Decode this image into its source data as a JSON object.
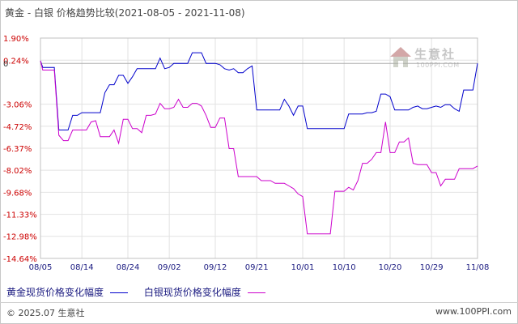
{
  "header": {
    "title": "黄金 - 白银 价格趋势比较(2021-08-05 - 2021-11-08)"
  },
  "chart_data": {
    "type": "line",
    "y_ticks": [
      "1.90%",
      "0.24%",
      "0",
      "-3.06%",
      "-4.72%",
      "-6.37%",
      "-8.02%",
      "-9.68%",
      "-11.33%",
      "-12.98%",
      "-14.64%"
    ],
    "y_tick_values": [
      1.9,
      0.24,
      0,
      -3.06,
      -4.72,
      -6.37,
      -8.02,
      -9.68,
      -11.33,
      -12.98,
      -14.64
    ],
    "ylim": [
      -14.64,
      1.9
    ],
    "x_ticks": [
      "08/05",
      "08/14",
      "08/24",
      "09/02",
      "09/12",
      "09/21",
      "10/01",
      "10/10",
      "10/20",
      "10/29",
      "11/08"
    ],
    "x_tick_days": [
      0,
      9,
      19,
      28,
      38,
      47,
      57,
      66,
      76,
      85,
      95
    ],
    "series": [
      {
        "name": "黄金现货价格变化幅度",
        "color": "#0000cc",
        "points": [
          [
            0,
            0.2
          ],
          [
            0.5,
            -0.3
          ],
          [
            1,
            -0.3
          ],
          [
            2,
            -0.3
          ],
          [
            3,
            -0.3
          ],
          [
            4,
            -5.0
          ],
          [
            5,
            -5.0
          ],
          [
            6,
            -5.0
          ],
          [
            7,
            -3.9
          ],
          [
            8,
            -3.9
          ],
          [
            9,
            -3.7
          ],
          [
            10,
            -3.7
          ],
          [
            11,
            -3.7
          ],
          [
            12,
            -3.7
          ],
          [
            13,
            -3.7
          ],
          [
            14,
            -2.2
          ],
          [
            15,
            -1.6
          ],
          [
            16,
            -1.6
          ],
          [
            17,
            -0.9
          ],
          [
            18,
            -0.9
          ],
          [
            19,
            -1.5
          ],
          [
            20,
            -1.0
          ],
          [
            21,
            -0.4
          ],
          [
            22,
            -0.4
          ],
          [
            23,
            -0.4
          ],
          [
            24,
            -0.4
          ],
          [
            25,
            -0.4
          ],
          [
            26,
            0.4
          ],
          [
            27,
            -0.4
          ],
          [
            28,
            -0.3
          ],
          [
            29,
            0.0
          ],
          [
            30,
            0.0
          ],
          [
            31,
            0.0
          ],
          [
            32,
            0.0
          ],
          [
            33,
            0.8
          ],
          [
            34,
            0.8
          ],
          [
            35,
            0.8
          ],
          [
            36,
            0.0
          ],
          [
            37,
            0.0
          ],
          [
            38,
            0.0
          ],
          [
            39,
            -0.1
          ],
          [
            40,
            -0.4
          ],
          [
            41,
            -0.5
          ],
          [
            42,
            -0.4
          ],
          [
            43,
            -0.7
          ],
          [
            44,
            -0.7
          ],
          [
            45,
            -0.4
          ],
          [
            46,
            -0.2
          ],
          [
            47,
            -3.5
          ],
          [
            48,
            -3.5
          ],
          [
            49,
            -3.5
          ],
          [
            50,
            -3.5
          ],
          [
            51,
            -3.5
          ],
          [
            52,
            -3.5
          ],
          [
            53,
            -2.7
          ],
          [
            54,
            -3.2
          ],
          [
            55,
            -3.9
          ],
          [
            56,
            -3.2
          ],
          [
            57,
            -3.2
          ],
          [
            58,
            -4.9
          ],
          [
            59,
            -4.9
          ],
          [
            60,
            -4.9
          ],
          [
            61,
            -4.9
          ],
          [
            62,
            -4.9
          ],
          [
            63,
            -4.9
          ],
          [
            64,
            -4.9
          ],
          [
            65,
            -4.9
          ],
          [
            66,
            -4.9
          ],
          [
            67,
            -3.8
          ],
          [
            68,
            -3.8
          ],
          [
            69,
            -3.8
          ],
          [
            70,
            -3.8
          ],
          [
            71,
            -3.7
          ],
          [
            72,
            -3.7
          ],
          [
            73,
            -3.6
          ],
          [
            74,
            -2.3
          ],
          [
            75,
            -2.3
          ],
          [
            76,
            -2.5
          ],
          [
            77,
            -3.5
          ],
          [
            78,
            -3.5
          ],
          [
            79,
            -3.5
          ],
          [
            80,
            -3.5
          ],
          [
            81,
            -3.3
          ],
          [
            82,
            -3.2
          ],
          [
            83,
            -3.4
          ],
          [
            84,
            -3.4
          ],
          [
            85,
            -3.3
          ],
          [
            86,
            -3.2
          ],
          [
            87,
            -3.3
          ],
          [
            88,
            -3.1
          ],
          [
            89,
            -3.1
          ],
          [
            90,
            -3.4
          ],
          [
            91,
            -3.6
          ],
          [
            92,
            -2.0
          ],
          [
            93,
            -2.0
          ],
          [
            94,
            -2.0
          ],
          [
            95,
            0.0
          ]
        ]
      },
      {
        "name": "白银现货价格变化幅度",
        "color": "#cc00cc",
        "points": [
          [
            0,
            0.2
          ],
          [
            0.5,
            -0.5
          ],
          [
            1,
            -0.5
          ],
          [
            2,
            -0.5
          ],
          [
            3,
            -0.5
          ],
          [
            4,
            -5.4
          ],
          [
            5,
            -5.8
          ],
          [
            6,
            -5.8
          ],
          [
            7,
            -5.0
          ],
          [
            8,
            -5.0
          ],
          [
            9,
            -5.0
          ],
          [
            10,
            -5.0
          ],
          [
            11,
            -4.4
          ],
          [
            12,
            -4.3
          ],
          [
            13,
            -5.5
          ],
          [
            14,
            -5.5
          ],
          [
            15,
            -5.5
          ],
          [
            16,
            -5.0
          ],
          [
            17,
            -6.0
          ],
          [
            18,
            -4.2
          ],
          [
            19,
            -4.2
          ],
          [
            20,
            -4.9
          ],
          [
            21,
            -4.9
          ],
          [
            22,
            -5.2
          ],
          [
            23,
            -3.9
          ],
          [
            24,
            -3.9
          ],
          [
            25,
            -3.8
          ],
          [
            26,
            -3.0
          ],
          [
            27,
            -3.4
          ],
          [
            28,
            -3.4
          ],
          [
            29,
            -3.3
          ],
          [
            30,
            -2.7
          ],
          [
            31,
            -3.3
          ],
          [
            32,
            -3.3
          ],
          [
            33,
            -3.0
          ],
          [
            34,
            -3.0
          ],
          [
            35,
            -3.2
          ],
          [
            36,
            -3.9
          ],
          [
            37,
            -4.8
          ],
          [
            38,
            -4.8
          ],
          [
            39,
            -4.1
          ],
          [
            40,
            -4.1
          ],
          [
            41,
            -6.4
          ],
          [
            42,
            -6.4
          ],
          [
            43,
            -8.5
          ],
          [
            44,
            -8.5
          ],
          [
            45,
            -8.5
          ],
          [
            46,
            -8.5
          ],
          [
            47,
            -8.5
          ],
          [
            48,
            -8.8
          ],
          [
            49,
            -8.8
          ],
          [
            50,
            -8.8
          ],
          [
            51,
            -9.0
          ],
          [
            52,
            -9.0
          ],
          [
            53,
            -9.0
          ],
          [
            54,
            -9.2
          ],
          [
            55,
            -9.4
          ],
          [
            56,
            -9.8
          ],
          [
            57,
            -10.0
          ],
          [
            58,
            -12.8
          ],
          [
            59,
            -12.8
          ],
          [
            60,
            -12.8
          ],
          [
            61,
            -12.8
          ],
          [
            62,
            -12.8
          ],
          [
            63,
            -12.8
          ],
          [
            64,
            -9.6
          ],
          [
            65,
            -9.6
          ],
          [
            66,
            -9.6
          ],
          [
            67,
            -9.3
          ],
          [
            68,
            -9.5
          ],
          [
            69,
            -8.8
          ],
          [
            70,
            -7.5
          ],
          [
            71,
            -7.5
          ],
          [
            72,
            -7.2
          ],
          [
            73,
            -6.7
          ],
          [
            74,
            -6.7
          ],
          [
            75,
            -4.4
          ],
          [
            76,
            -6.7
          ],
          [
            77,
            -6.7
          ],
          [
            78,
            -5.9
          ],
          [
            79,
            -5.9
          ],
          [
            80,
            -5.6
          ],
          [
            81,
            -7.5
          ],
          [
            82,
            -7.6
          ],
          [
            83,
            -7.6
          ],
          [
            84,
            -7.6
          ],
          [
            85,
            -8.2
          ],
          [
            86,
            -8.2
          ],
          [
            87,
            -9.2
          ],
          [
            88,
            -8.7
          ],
          [
            89,
            -8.7
          ],
          [
            90,
            -8.7
          ],
          [
            91,
            -7.9
          ],
          [
            92,
            -7.9
          ],
          [
            93,
            -7.9
          ],
          [
            94,
            -7.9
          ],
          [
            95,
            -7.7
          ]
        ]
      }
    ]
  },
  "legend": {
    "gold_label": "黄金现货价格变化幅度",
    "silver_label": "白银现货价格变化幅度"
  },
  "watermark": {
    "name": "生意社",
    "url": "100PPI.COM"
  },
  "footer": {
    "copyright": "© 2025.07 生意社",
    "site": "www.100PPI.com"
  }
}
